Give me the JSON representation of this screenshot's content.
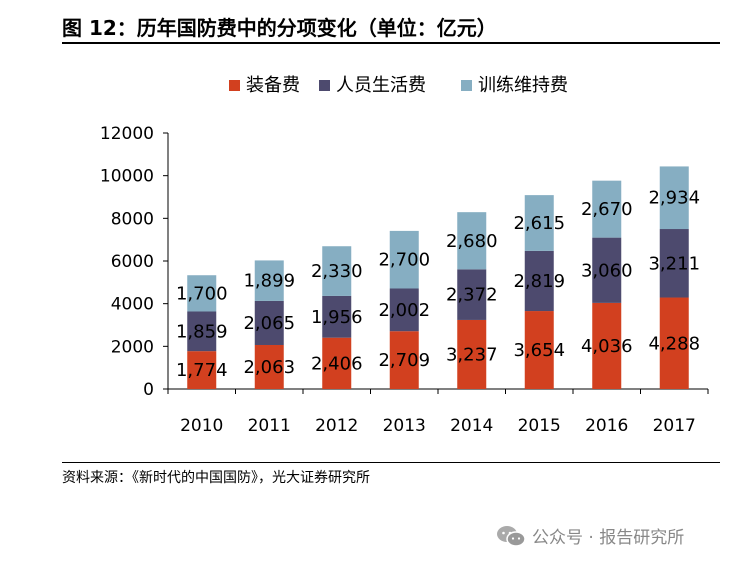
{
  "header": {
    "title": "图 12：历年国防费中的分项变化（单位：亿元）"
  },
  "footer": {
    "source": "资料来源：《新时代的中国国防》，光大证券研究所",
    "watermark": "公众号 · 报告研究所",
    "watermark_icon": "wechat-icon"
  },
  "chart_data": {
    "type": "bar",
    "stacked": true,
    "title": "",
    "xlabel": "",
    "ylabel": "",
    "categories": [
      "2010",
      "2011",
      "2012",
      "2013",
      "2014",
      "2015",
      "2016",
      "2017"
    ],
    "ylim": [
      0,
      12000
    ],
    "yticks": [
      "0",
      "2000",
      "4000",
      "6000",
      "8000",
      "10000",
      "12000"
    ],
    "grid": false,
    "legend_position": "top",
    "series": [
      {
        "name": "装备费",
        "color": "#d2401f",
        "values": [
          1774,
          2063,
          2406,
          2709,
          3237,
          3654,
          4036,
          4288
        ],
        "labels": [
          "1,774",
          "2,063",
          "2,406",
          "2,709",
          "3,237",
          "3,654",
          "4,036",
          "4,288"
        ]
      },
      {
        "name": "人员生活费",
        "color": "#4d4a6e",
        "values": [
          1859,
          2065,
          1956,
          2002,
          2372,
          2819,
          3060,
          3211
        ],
        "labels": [
          "1,859",
          "2,065",
          "1,956",
          "2,002",
          "2,372",
          "2,819",
          "3,060",
          "3,211"
        ]
      },
      {
        "name": "训练维持费",
        "color": "#86aec2",
        "values": [
          1700,
          1899,
          2330,
          2700,
          2680,
          2615,
          2670,
          2934
        ],
        "labels": [
          "1,700",
          "1,899",
          "2,330",
          "2,700",
          "2,680",
          "2,615",
          "2,670",
          "2,934"
        ]
      }
    ]
  }
}
